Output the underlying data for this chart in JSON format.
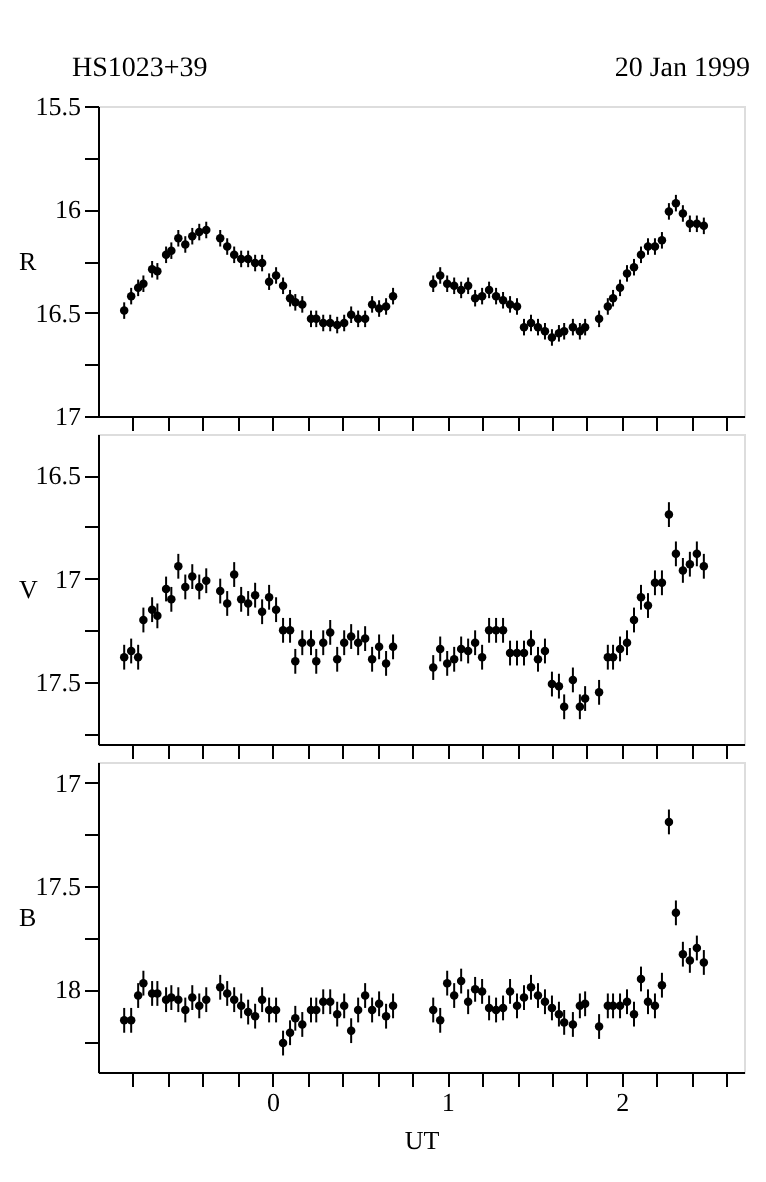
{
  "chart_data": [
    {
      "type": "scatter",
      "title": "HS1023+39",
      "annotations": [
        "20 Jan 1999"
      ],
      "ylabel": "R",
      "color": "#000000",
      "marker": "circle",
      "grid": false,
      "tick_labels": "y",
      "x": [
        -0.85,
        -0.81,
        -0.77,
        -0.74,
        -0.69,
        -0.66,
        -0.61,
        -0.58,
        -0.54,
        -0.5,
        -0.46,
        -0.42,
        -0.38,
        -0.3,
        -0.26,
        -0.22,
        -0.18,
        -0.14,
        -0.1,
        -0.06,
        -0.02,
        0.02,
        0.06,
        0.1,
        0.13,
        0.17,
        0.22,
        0.25,
        0.29,
        0.33,
        0.37,
        0.41,
        0.45,
        0.49,
        0.53,
        0.57,
        0.61,
        0.65,
        0.69,
        0.92,
        0.96,
        1.0,
        1.04,
        1.08,
        1.12,
        1.16,
        1.2,
        1.24,
        1.28,
        1.32,
        1.36,
        1.4,
        1.44,
        1.48,
        1.52,
        1.56,
        1.6,
        1.64,
        1.67,
        1.72,
        1.76,
        1.79,
        1.87,
        1.92,
        1.95,
        1.99,
        2.03,
        2.07,
        2.11,
        2.15,
        2.19,
        2.23,
        2.27,
        2.31,
        2.35,
        2.39,
        2.43,
        2.47
      ],
      "values": [
        16.49,
        16.42,
        16.38,
        16.36,
        16.29,
        16.3,
        16.22,
        16.2,
        16.14,
        16.17,
        16.13,
        16.11,
        16.1,
        16.14,
        16.18,
        16.22,
        16.24,
        16.24,
        16.26,
        16.26,
        16.35,
        16.32,
        16.37,
        16.43,
        16.45,
        16.46,
        16.53,
        16.53,
        16.55,
        16.55,
        16.56,
        16.55,
        16.51,
        16.53,
        16.53,
        16.46,
        16.48,
        16.47,
        16.42,
        16.36,
        16.32,
        16.36,
        16.37,
        16.39,
        16.37,
        16.43,
        16.42,
        16.39,
        16.42,
        16.44,
        16.46,
        16.47,
        16.57,
        16.55,
        16.57,
        16.59,
        16.62,
        16.6,
        16.59,
        16.57,
        16.59,
        16.57,
        16.53,
        16.47,
        16.43,
        16.38,
        16.31,
        16.28,
        16.22,
        16.18,
        16.18,
        16.15,
        16.01,
        15.97,
        16.02,
        16.07,
        16.07,
        16.08
      ],
      "errors": [
        0.04,
        0.04,
        0.04,
        0.04,
        0.04,
        0.04,
        0.04,
        0.04,
        0.04,
        0.04,
        0.04,
        0.04,
        0.04,
        0.04,
        0.04,
        0.04,
        0.04,
        0.04,
        0.04,
        0.04,
        0.04,
        0.04,
        0.04,
        0.04,
        0.04,
        0.04,
        0.04,
        0.04,
        0.04,
        0.04,
        0.04,
        0.04,
        0.04,
        0.04,
        0.04,
        0.04,
        0.04,
        0.04,
        0.04,
        0.04,
        0.04,
        0.04,
        0.04,
        0.04,
        0.04,
        0.04,
        0.04,
        0.04,
        0.04,
        0.04,
        0.04,
        0.04,
        0.04,
        0.04,
        0.04,
        0.04,
        0.04,
        0.04,
        0.04,
        0.04,
        0.04,
        0.04,
        0.04,
        0.04,
        0.04,
        0.04,
        0.04,
        0.04,
        0.04,
        0.04,
        0.04,
        0.04,
        0.04,
        0.04,
        0.04,
        0.04,
        0.04,
        0.04
      ],
      "xlim": [
        -1,
        2.7
      ],
      "xticks": [
        {
          "value": -0.8,
          "label": null
        },
        {
          "value": -0.6,
          "label": null
        },
        {
          "value": -0.4,
          "label": null
        },
        {
          "value": -0.2,
          "label": null
        },
        0,
        {
          "value": 0.2,
          "label": null
        },
        {
          "value": 0.4,
          "label": null
        },
        {
          "value": 0.6,
          "label": null
        },
        {
          "value": 0.8,
          "label": null
        },
        1,
        {
          "value": 1.2,
          "label": null
        },
        {
          "value": 1.4,
          "label": null
        },
        {
          "value": 1.6,
          "label": null
        },
        {
          "value": 1.8,
          "label": null
        },
        2,
        {
          "value": 2.2,
          "label": null
        },
        {
          "value": 2.4,
          "label": null
        },
        {
          "value": 2.6,
          "label": null
        }
      ],
      "ylim": [
        17,
        15.5
      ],
      "yticks": [
        15.5,
        {
          "value": 15.75,
          "label": null
        },
        16,
        {
          "value": 16.25,
          "label": null
        },
        16.5,
        {
          "value": 16.75,
          "label": null
        },
        17
      ]
    },
    {
      "type": "scatter",
      "ylabel": "V",
      "color": "#000000",
      "marker": "circle",
      "grid": false,
      "tick_labels": "y",
      "x": [
        -0.85,
        -0.81,
        -0.77,
        -0.74,
        -0.69,
        -0.66,
        -0.61,
        -0.58,
        -0.54,
        -0.5,
        -0.46,
        -0.42,
        -0.38,
        -0.3,
        -0.26,
        -0.22,
        -0.18,
        -0.14,
        -0.1,
        -0.06,
        -0.02,
        0.02,
        0.06,
        0.1,
        0.13,
        0.17,
        0.22,
        0.25,
        0.29,
        0.33,
        0.37,
        0.41,
        0.45,
        0.49,
        0.53,
        0.57,
        0.61,
        0.65,
        0.69,
        0.92,
        0.96,
        1.0,
        1.04,
        1.08,
        1.12,
        1.16,
        1.2,
        1.24,
        1.28,
        1.32,
        1.36,
        1.4,
        1.44,
        1.48,
        1.52,
        1.56,
        1.6,
        1.64,
        1.67,
        1.72,
        1.76,
        1.79,
        1.87,
        1.92,
        1.95,
        1.99,
        2.03,
        2.07,
        2.11,
        2.15,
        2.19,
        2.23,
        2.27,
        2.31,
        2.35,
        2.39,
        2.43,
        2.47
      ],
      "values": [
        17.38,
        17.35,
        17.38,
        17.2,
        17.15,
        17.18,
        17.05,
        17.1,
        16.94,
        17.04,
        16.99,
        17.04,
        17.01,
        17.06,
        17.12,
        16.98,
        17.1,
        17.12,
        17.08,
        17.16,
        17.09,
        17.15,
        17.25,
        17.25,
        17.4,
        17.31,
        17.31,
        17.4,
        17.31,
        17.26,
        17.39,
        17.31,
        17.28,
        17.31,
        17.29,
        17.39,
        17.33,
        17.41,
        17.33,
        17.43,
        17.34,
        17.41,
        17.39,
        17.34,
        17.35,
        17.31,
        17.38,
        17.25,
        17.25,
        17.25,
        17.36,
        17.36,
        17.36,
        17.31,
        17.39,
        17.35,
        17.51,
        17.52,
        17.62,
        17.49,
        17.62,
        17.58,
        17.55,
        17.38,
        17.38,
        17.34,
        17.31,
        17.2,
        17.09,
        17.13,
        17.02,
        17.02,
        16.69,
        16.88,
        16.96,
        16.93,
        16.88,
        16.94
      ],
      "errors": [
        0.06,
        0.06,
        0.06,
        0.06,
        0.06,
        0.06,
        0.06,
        0.06,
        0.06,
        0.06,
        0.06,
        0.06,
        0.06,
        0.06,
        0.06,
        0.06,
        0.06,
        0.06,
        0.06,
        0.06,
        0.06,
        0.06,
        0.06,
        0.06,
        0.06,
        0.06,
        0.06,
        0.06,
        0.06,
        0.06,
        0.06,
        0.06,
        0.06,
        0.06,
        0.06,
        0.06,
        0.06,
        0.06,
        0.06,
        0.06,
        0.06,
        0.06,
        0.06,
        0.06,
        0.06,
        0.06,
        0.06,
        0.06,
        0.06,
        0.06,
        0.06,
        0.06,
        0.06,
        0.06,
        0.06,
        0.06,
        0.06,
        0.06,
        0.06,
        0.06,
        0.06,
        0.06,
        0.06,
        0.06,
        0.06,
        0.06,
        0.06,
        0.06,
        0.06,
        0.06,
        0.06,
        0.06,
        0.06,
        0.06,
        0.06,
        0.06,
        0.06,
        0.06
      ],
      "xlim": [
        -1,
        2.7
      ],
      "xticks": [
        {
          "value": -0.8,
          "label": null
        },
        {
          "value": -0.6,
          "label": null
        },
        {
          "value": -0.4,
          "label": null
        },
        {
          "value": -0.2,
          "label": null
        },
        0,
        {
          "value": 0.2,
          "label": null
        },
        {
          "value": 0.4,
          "label": null
        },
        {
          "value": 0.6,
          "label": null
        },
        {
          "value": 0.8,
          "label": null
        },
        1,
        {
          "value": 1.2,
          "label": null
        },
        {
          "value": 1.4,
          "label": null
        },
        {
          "value": 1.6,
          "label": null
        },
        {
          "value": 1.8,
          "label": null
        },
        2,
        {
          "value": 2.2,
          "label": null
        },
        {
          "value": 2.4,
          "label": null
        },
        {
          "value": 2.6,
          "label": null
        }
      ],
      "ylim": [
        17.8,
        16.3
      ],
      "yticks": [
        16.5,
        {
          "value": 16.75,
          "label": null
        },
        17,
        {
          "value": 17.25,
          "label": null
        },
        17.5,
        {
          "value": 17.75,
          "label": null
        }
      ]
    },
    {
      "type": "scatter",
      "ylabel": "B",
      "xlabel": "UT",
      "color": "#000000",
      "marker": "circle",
      "grid": false,
      "x": [
        -0.85,
        -0.81,
        -0.77,
        -0.74,
        -0.69,
        -0.66,
        -0.61,
        -0.58,
        -0.54,
        -0.5,
        -0.46,
        -0.42,
        -0.38,
        -0.3,
        -0.26,
        -0.22,
        -0.18,
        -0.14,
        -0.1,
        -0.06,
        -0.02,
        0.02,
        0.06,
        0.1,
        0.13,
        0.17,
        0.22,
        0.25,
        0.29,
        0.33,
        0.37,
        0.41,
        0.45,
        0.49,
        0.53,
        0.57,
        0.61,
        0.65,
        0.69,
        0.92,
        0.96,
        1.0,
        1.04,
        1.08,
        1.12,
        1.16,
        1.2,
        1.24,
        1.28,
        1.32,
        1.36,
        1.4,
        1.44,
        1.48,
        1.52,
        1.56,
        1.6,
        1.64,
        1.67,
        1.72,
        1.76,
        1.79,
        1.87,
        1.92,
        1.95,
        1.99,
        2.03,
        2.07,
        2.11,
        2.15,
        2.19,
        2.23,
        2.27,
        2.31,
        2.35,
        2.39,
        2.43,
        2.47
      ],
      "values": [
        18.15,
        18.15,
        18.03,
        17.97,
        18.02,
        18.02,
        18.05,
        18.04,
        18.05,
        18.1,
        18.04,
        18.08,
        18.05,
        17.99,
        18.02,
        18.05,
        18.08,
        18.11,
        18.13,
        18.05,
        18.1,
        18.1,
        18.26,
        18.21,
        18.14,
        18.17,
        18.1,
        18.1,
        18.06,
        18.06,
        18.12,
        18.08,
        18.2,
        18.1,
        18.03,
        18.1,
        18.07,
        18.13,
        18.08,
        18.1,
        18.15,
        17.97,
        18.03,
        17.96,
        18.06,
        18.0,
        18.01,
        18.09,
        18.1,
        18.09,
        18.01,
        18.08,
        18.04,
        17.99,
        18.03,
        18.06,
        18.09,
        18.12,
        18.16,
        18.17,
        18.08,
        18.07,
        18.18,
        18.08,
        18.08,
        18.08,
        18.06,
        18.12,
        17.95,
        18.06,
        18.08,
        17.98,
        17.19,
        17.63,
        17.83,
        17.86,
        17.8,
        17.87
      ],
      "errors": [
        0.06,
        0.06,
        0.06,
        0.06,
        0.06,
        0.06,
        0.06,
        0.06,
        0.06,
        0.06,
        0.06,
        0.06,
        0.06,
        0.06,
        0.06,
        0.06,
        0.06,
        0.06,
        0.06,
        0.06,
        0.06,
        0.06,
        0.06,
        0.06,
        0.06,
        0.06,
        0.06,
        0.06,
        0.06,
        0.06,
        0.06,
        0.06,
        0.06,
        0.06,
        0.06,
        0.06,
        0.06,
        0.06,
        0.06,
        0.06,
        0.06,
        0.06,
        0.06,
        0.06,
        0.06,
        0.06,
        0.06,
        0.06,
        0.06,
        0.06,
        0.06,
        0.06,
        0.06,
        0.06,
        0.06,
        0.06,
        0.06,
        0.06,
        0.06,
        0.06,
        0.06,
        0.06,
        0.06,
        0.06,
        0.06,
        0.06,
        0.06,
        0.06,
        0.06,
        0.06,
        0.06,
        0.06,
        0.06,
        0.06,
        0.06,
        0.06,
        0.06,
        0.06
      ],
      "xlim": [
        -1,
        2.7
      ],
      "xticks": [
        {
          "value": -0.8,
          "label": null
        },
        {
          "value": -0.6,
          "label": null
        },
        {
          "value": -0.4,
          "label": null
        },
        {
          "value": -0.2,
          "label": null
        },
        0,
        {
          "value": 0.2,
          "label": null
        },
        {
          "value": 0.4,
          "label": null
        },
        {
          "value": 0.6,
          "label": null
        },
        {
          "value": 0.8,
          "label": null
        },
        1,
        {
          "value": 1.2,
          "label": null
        },
        {
          "value": 1.4,
          "label": null
        },
        {
          "value": 1.6,
          "label": null
        },
        {
          "value": 1.8,
          "label": null
        },
        2,
        {
          "value": 2.2,
          "label": null
        },
        {
          "value": 2.4,
          "label": null
        },
        {
          "value": 2.6,
          "label": null
        }
      ],
      "ylim": [
        18.4,
        16.9
      ],
      "yticks": [
        17,
        {
          "value": 17.25,
          "label": null
        },
        17.5,
        {
          "value": 17.75,
          "label": null
        },
        18,
        {
          "value": 18.25,
          "label": null
        }
      ]
    }
  ]
}
